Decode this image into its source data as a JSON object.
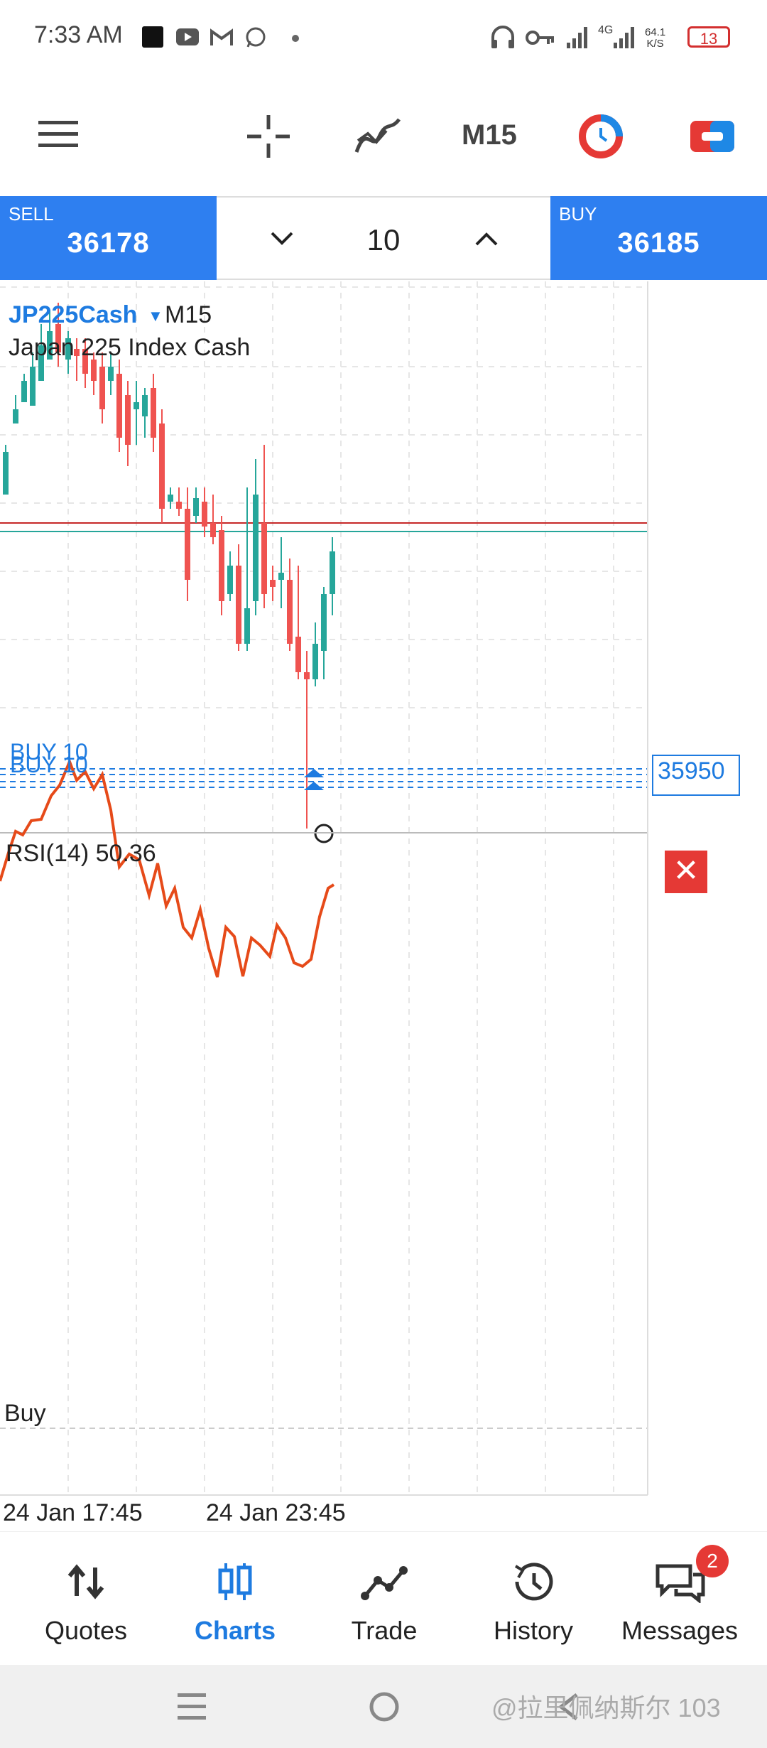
{
  "status_bar": {
    "time": "7:33 AM",
    "net_speed_value": "64.1",
    "net_speed_unit": "K/S",
    "network_type": "4G",
    "battery": "13",
    "icons": [
      "app-square-icon",
      "youtube-icon",
      "gmail-icon",
      "whatsapp-icon",
      "dot-icon",
      "headphones-icon",
      "key-icon",
      "signal-icon",
      "signal-icon-2",
      "battery-icon"
    ]
  },
  "toolbar": {
    "icons": [
      "menu-icon",
      "crosshair-icon",
      "indicators-icon",
      "timeframe-button",
      "theme-icon",
      "trade-toggle-icon"
    ],
    "timeframe": "M15"
  },
  "trade_panel": {
    "sell_label": "SELL",
    "sell_price": "36178",
    "buy_label": "BUY",
    "buy_price": "36185",
    "lot": "10",
    "decrease_icon": "chevron-down-icon",
    "increase_icon": "chevron-up-icon"
  },
  "chart": {
    "symbol": "JP225Cash",
    "timeframe": "M15",
    "description": "Japan 225 Index Cash",
    "order_labels": [
      "BUY 10",
      "BUY 10"
    ],
    "price_tag": "35950",
    "indicator_label": "RSI(14) 50.36",
    "indicator_level_label": "Buy",
    "time_labels": [
      "24 Jan 17:45",
      "24 Jan 23:45"
    ],
    "colors": {
      "bull": "#26a69a",
      "bear": "#ef5350",
      "order_line": "#1e7be0",
      "accent": "#2e7ff0"
    }
  },
  "bottom_nav": {
    "items": [
      {
        "label": "Quotes",
        "icon": "quotes-arrows-icon",
        "active": false
      },
      {
        "label": "Charts",
        "icon": "candles-icon",
        "active": true
      },
      {
        "label": "Trade",
        "icon": "trade-line-icon",
        "active": false
      },
      {
        "label": "History",
        "icon": "history-clock-icon",
        "active": false
      },
      {
        "label": "Messages",
        "icon": "messages-icon",
        "active": false,
        "badge": "2"
      }
    ]
  },
  "system_nav": {
    "icons": [
      "recents-icon",
      "home-icon",
      "back-icon"
    ],
    "watermark": "@拉里佩纳斯尔 103"
  }
}
